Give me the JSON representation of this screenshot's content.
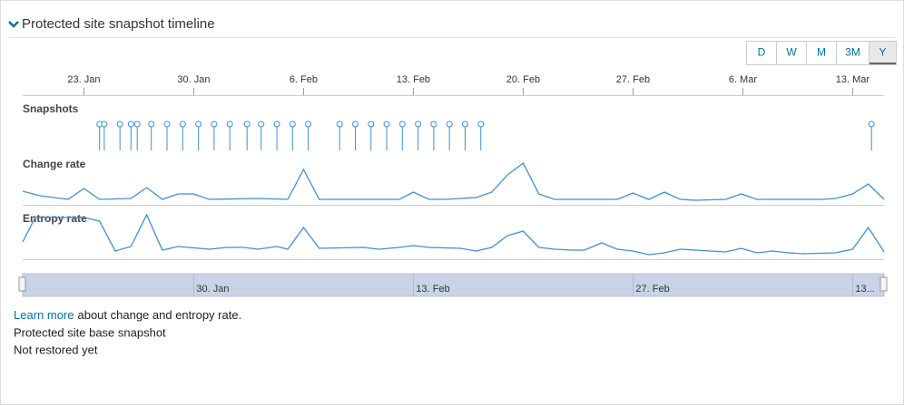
{
  "header": {
    "title": "Protected site snapshot timeline"
  },
  "range_buttons": {
    "options": [
      "D",
      "W",
      "M",
      "3M",
      "Y"
    ],
    "selected": "Y"
  },
  "chart_data": {
    "type": "timeline",
    "xlim": [
      19.1,
      74.0
    ],
    "xticks": [
      {
        "value": 23,
        "label": "23. Jan"
      },
      {
        "value": 30,
        "label": "30. Jan"
      },
      {
        "value": 37,
        "label": "6. Feb"
      },
      {
        "value": 44,
        "label": "13. Feb"
      },
      {
        "value": 51,
        "label": "20. Feb"
      },
      {
        "value": 58,
        "label": "27. Feb"
      },
      {
        "value": 65,
        "label": "6. Mar"
      },
      {
        "value": 72,
        "label": "13. Mar"
      }
    ],
    "snapshots": {
      "label": "Snapshots",
      "x": [
        24.0,
        24.3,
        25.3,
        26.0,
        26.4,
        27.3,
        28.3,
        29.3,
        30.3,
        31.3,
        32.3,
        33.4,
        34.3,
        35.3,
        36.3,
        37.3,
        39.3,
        40.3,
        41.3,
        42.3,
        43.3,
        44.3,
        45.3,
        46.3,
        47.3,
        48.3,
        73.2
      ]
    },
    "series": [
      {
        "name": "Change rate",
        "color": "#3d8fd9",
        "x": [
          19.1,
          20.2,
          22.0,
          23.0,
          24.0,
          26.0,
          27.0,
          28.0,
          29.0,
          30.0,
          31.0,
          34.1,
          36.0,
          37.0,
          38.0,
          43.1,
          44.0,
          45.0,
          46.0,
          48.0,
          49.0,
          50.0,
          51.0,
          52.0,
          53.0,
          57.0,
          58.0,
          59.0,
          60.0,
          61.0,
          62.0,
          63.9,
          64.9,
          65.9,
          70.0,
          70.9,
          72.0,
          73.0,
          74.0
        ],
        "values": [
          14,
          9,
          5,
          17,
          5,
          6,
          18,
          5,
          11,
          11,
          5,
          6,
          5,
          38,
          5,
          5,
          13,
          5,
          5,
          7,
          13,
          32,
          45,
          11,
          5,
          5,
          12,
          5,
          13,
          5,
          4,
          5,
          11,
          5,
          5,
          6,
          11,
          22,
          5
        ]
      },
      {
        "name": "Entropy rate",
        "color": "#3d8fd9",
        "x": [
          19.1,
          19.9,
          23.0,
          24.0,
          25.0,
          26.0,
          27.0,
          28.0,
          29.0,
          31.0,
          32.1,
          33.2,
          34.1,
          35.3,
          36.0,
          37.0,
          38.0,
          40.8,
          41.8,
          43.1,
          44.0,
          45.0,
          47.0,
          48.0,
          49.0,
          50.0,
          51.0,
          52.0,
          53.0,
          54.1,
          54.9,
          56.0,
          57.0,
          58.0,
          59.0,
          60.0,
          61.0,
          62.0,
          63.9,
          64.9,
          65.9,
          66.9,
          67.9,
          68.9,
          70.9,
          72.0,
          73.0,
          74.0
        ],
        "values": [
          19,
          46,
          46,
          42,
          9,
          14,
          49,
          10,
          14,
          11,
          13,
          13,
          11,
          14,
          11,
          35,
          12,
          13,
          11,
          13,
          15,
          13,
          12,
          9,
          13,
          26,
          31,
          13,
          11,
          10,
          10,
          18,
          11,
          9,
          5,
          7,
          11,
          10,
          8,
          12,
          7,
          9,
          7,
          6,
          7,
          11,
          35,
          8
        ]
      }
    ],
    "navigator": {
      "xticks": [
        {
          "value": 30,
          "label": "30. Jan"
        },
        {
          "value": 44,
          "label": "13. Feb"
        },
        {
          "value": 58,
          "label": "27. Feb"
        },
        {
          "value": 72,
          "label": "13..."
        }
      ]
    }
  },
  "footer": {
    "link": "Learn more",
    "link_text": "about change and entropy rate.",
    "lines": [
      "Protected site base snapshot",
      "Not restored yet"
    ]
  }
}
